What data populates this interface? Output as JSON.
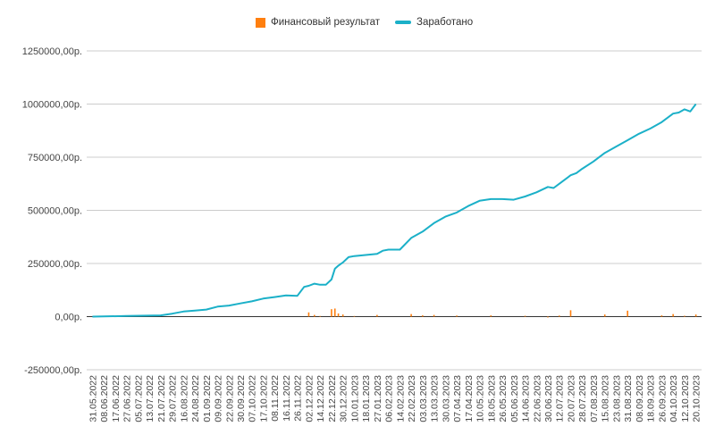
{
  "chart_data": {
    "type": "line",
    "title": "",
    "xlabel": "",
    "ylabel": "",
    "legend_position": "top-center",
    "grid": true,
    "ylim": [
      -250000,
      1250000
    ],
    "y_ticks": [
      {
        "value": 1250000,
        "label": "1250000,00р."
      },
      {
        "value": 1000000,
        "label": "1000000,00р."
      },
      {
        "value": 750000,
        "label": "750000,00р."
      },
      {
        "value": 500000,
        "label": "500000,00р."
      },
      {
        "value": 250000,
        "label": "250000,00р."
      },
      {
        "value": 0,
        "label": "0,00р."
      },
      {
        "value": -250000,
        "label": "-250000,00р."
      }
    ],
    "x_tick_labels": [
      "31.05.2022",
      "08.06.2022",
      "17.06.2022",
      "27.06.2022",
      "05.07.2022",
      "13.07.2022",
      "21.07.2022",
      "29.07.2022",
      "16.08.2022",
      "24.08.2022",
      "01.09.2022",
      "09.09.2022",
      "22.09.2022",
      "30.09.2022",
      "07.10.2022",
      "17.10.2022",
      "08.11.2022",
      "16.11.2022",
      "26.11.2022",
      "02.12.2022",
      "14.12.2022",
      "22.12.2022",
      "30.12.2022",
      "10.01.2023",
      "18.01.2023",
      "27.01.2023",
      "06.02.2023",
      "14.02.2023",
      "22.02.2023",
      "03.03.2023",
      "13.03.2023",
      "30.03.2023",
      "07.04.2023",
      "17.04.2023",
      "10.05.2023",
      "18.05.2023",
      "26.05.2023",
      "05.06.2023",
      "14.06.2023",
      "22.06.2023",
      "30.06.2023",
      "12.07.2023",
      "20.07.2023",
      "28.07.2023",
      "07.08.2023",
      "15.08.2023",
      "23.08.2023",
      "31.08.2023",
      "08.09.2023",
      "18.09.2023",
      "26.09.2023",
      "04.10.2023",
      "12.10.2023",
      "20.10.2023"
    ],
    "series": [
      {
        "name": "Финансовый результат",
        "type": "bar",
        "color": "#ff7f0e",
        "x_index": [
          19,
          19.5,
          20,
          21,
          21.3,
          21.6,
          22,
          23,
          25,
          28,
          29,
          30,
          32,
          35,
          38,
          40,
          41,
          42,
          45,
          47,
          50,
          51,
          52,
          53
        ],
        "values": [
          20000,
          8000,
          3000,
          35000,
          38000,
          15000,
          10000,
          3000,
          8000,
          12000,
          6000,
          8000,
          5000,
          6000,
          4000,
          -4000,
          5000,
          30000,
          10000,
          28000,
          6000,
          12000,
          4000,
          10000
        ]
      },
      {
        "name": "Заработано",
        "type": "line",
        "color": "#1bb0c8",
        "x_index": [
          0,
          3,
          6,
          7,
          8,
          9,
          10,
          11,
          12,
          13,
          14,
          15,
          16,
          17,
          18,
          18.6,
          19,
          19.5,
          20,
          20.5,
          21,
          21.3,
          21.6,
          22,
          22.5,
          23,
          24,
          25,
          25.5,
          26,
          27,
          28,
          29,
          30,
          31,
          32,
          33,
          34,
          35,
          36,
          37,
          38,
          39,
          40,
          40.5,
          41,
          42,
          42.5,
          43,
          44,
          45,
          46,
          47,
          48,
          49,
          50,
          51,
          51.5,
          52,
          52.5,
          53
        ],
        "values": [
          0,
          3000,
          6000,
          14000,
          24000,
          28000,
          33000,
          47000,
          52000,
          62000,
          72000,
          85000,
          92000,
          100000,
          98000,
          140000,
          145000,
          155000,
          150000,
          150000,
          175000,
          225000,
          240000,
          255000,
          280000,
          285000,
          290000,
          295000,
          310000,
          315000,
          315000,
          370000,
          400000,
          440000,
          470000,
          490000,
          520000,
          545000,
          553000,
          553000,
          550000,
          565000,
          585000,
          610000,
          605000,
          625000,
          665000,
          675000,
          695000,
          730000,
          770000,
          800000,
          830000,
          860000,
          885000,
          915000,
          955000,
          960000,
          975000,
          965000,
          1000000
        ]
      }
    ]
  }
}
